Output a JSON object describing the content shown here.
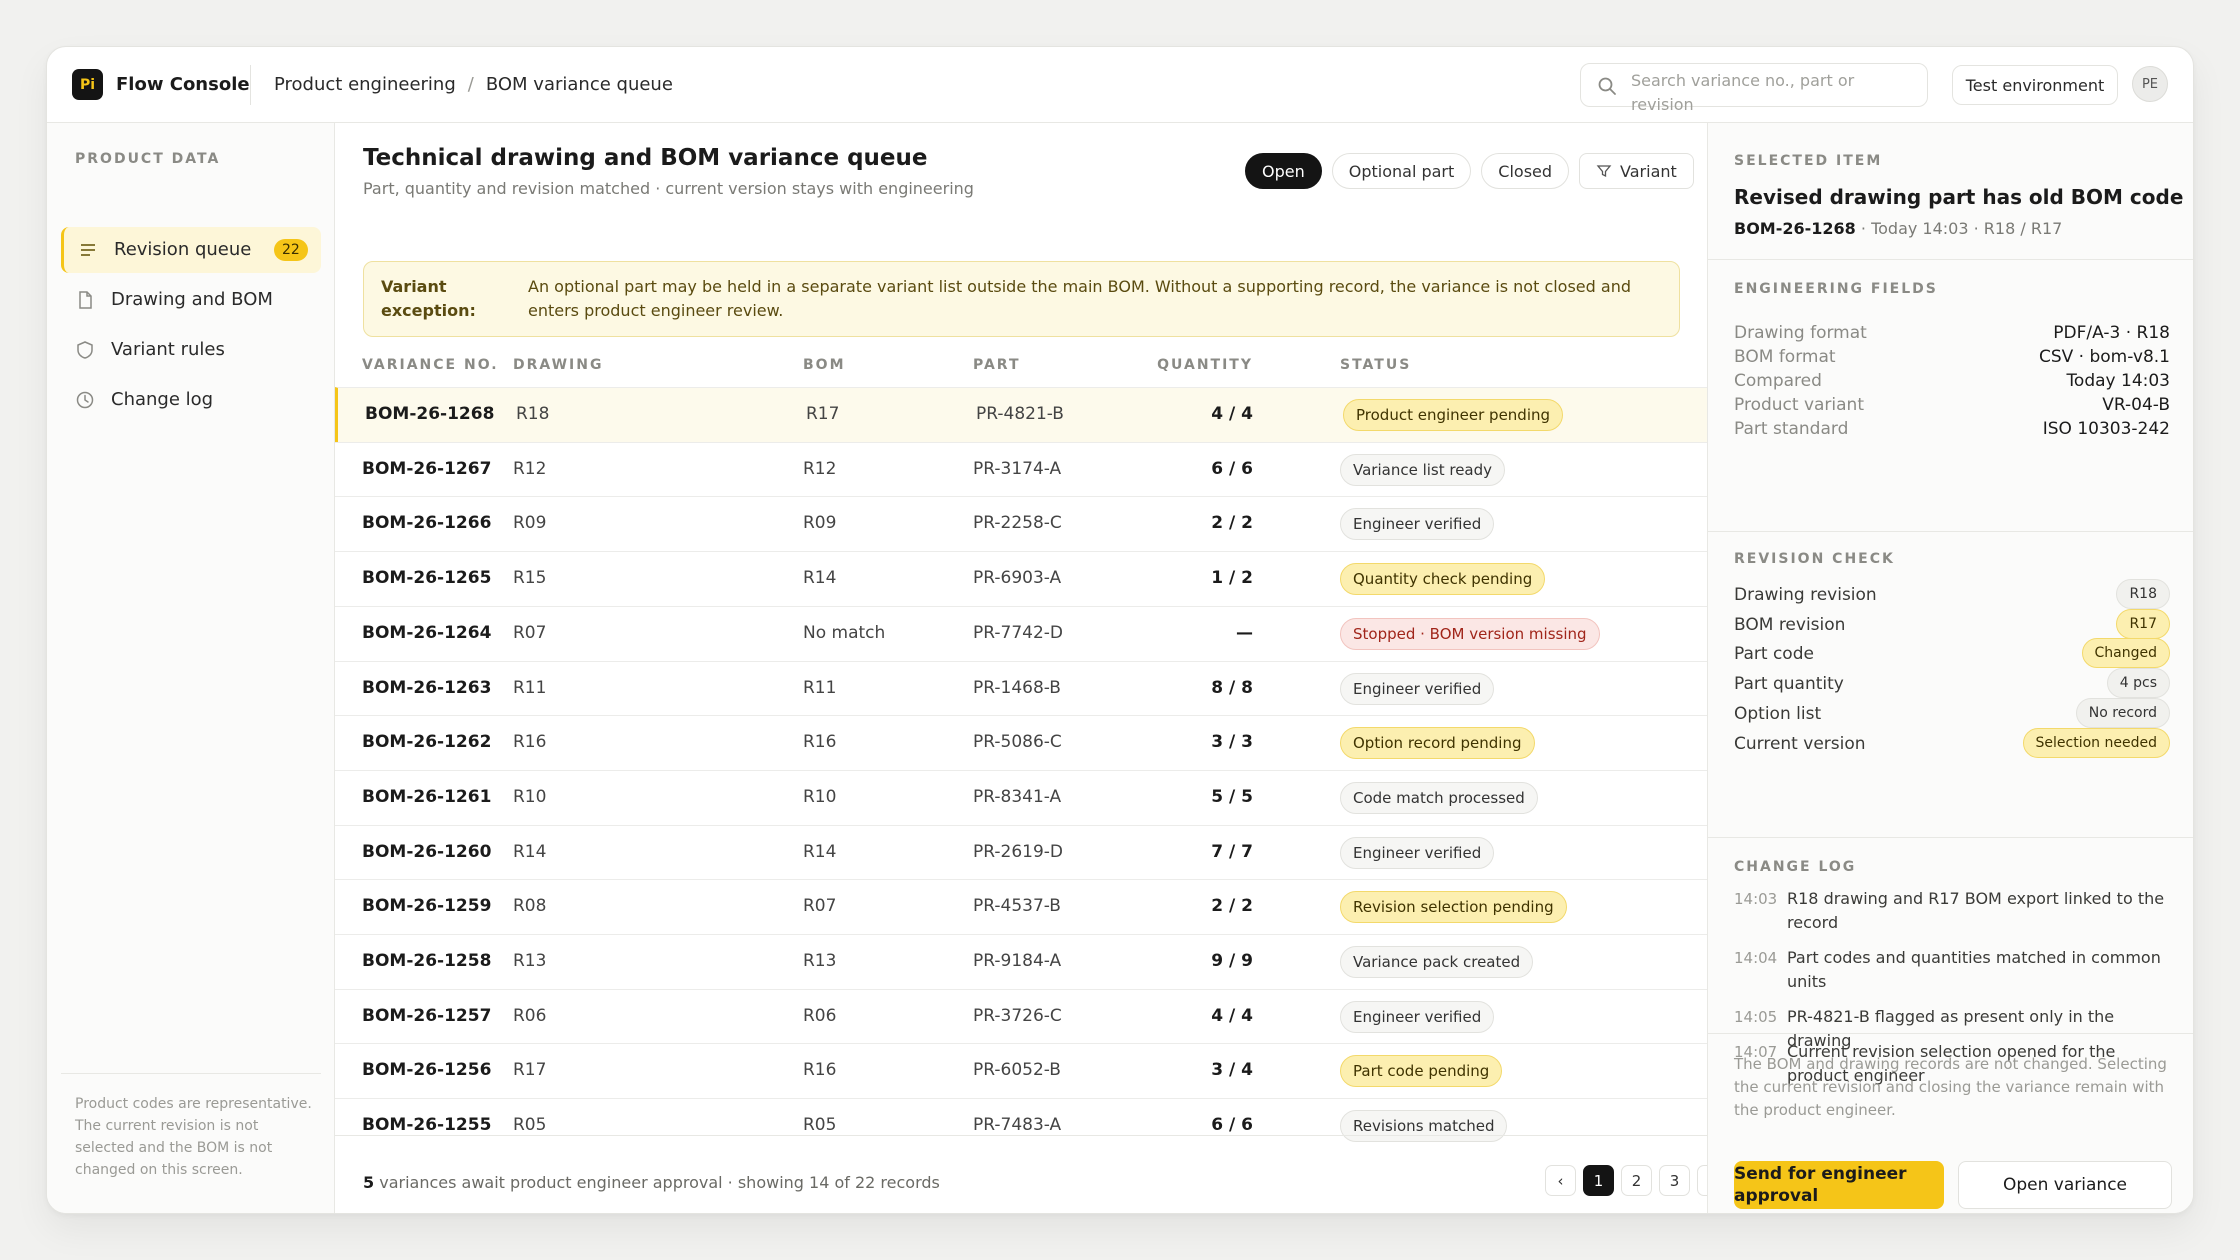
{
  "app": {
    "logo_text": "Pi",
    "name": "Flow Console"
  },
  "breadcrumb": [
    "Product engineering",
    "/",
    "BOM variance queue"
  ],
  "search": {
    "placeholder": "Search variance no., part or revision"
  },
  "env_label": "Test environment",
  "avatar": "PE",
  "sidebar": {
    "section": "PRODUCT DATA",
    "items": [
      {
        "label": "Revision queue",
        "badge": "22",
        "icon": "list-icon"
      },
      {
        "label": "Drawing and BOM",
        "icon": "document-icon"
      },
      {
        "label": "Variant rules",
        "icon": "shield-icon"
      },
      {
        "label": "Change log",
        "icon": "clock-icon"
      }
    ],
    "footer": "Product codes are representative. The current revision is not selected and the BOM is not changed on this screen."
  },
  "main": {
    "title": "Technical drawing and BOM variance queue",
    "subtitle": "Part, quantity and revision matched · current version stays with engineering",
    "filters": [
      "Open",
      "Optional part",
      "Closed",
      "Variant"
    ],
    "notice_label": "Variant exception:",
    "notice_text": "An optional part may be held in a separate variant list outside the main BOM. Without a supporting record, the variance is not closed and enters product engineer review.",
    "columns": [
      "VARIANCE NO.",
      "DRAWING",
      "BOM",
      "PART",
      "QUANTITY",
      "STATUS"
    ],
    "rows": [
      {
        "id": "BOM-26-1268",
        "drawing": "R18",
        "bom": "R17",
        "part": "PR-4821-B",
        "qty": "4 / 4",
        "status": "Product engineer pending",
        "tone": "yellow"
      },
      {
        "id": "BOM-26-1267",
        "drawing": "R12",
        "bom": "R12",
        "part": "PR-3174-A",
        "qty": "6 / 6",
        "status": "Variance list ready",
        "tone": "gray"
      },
      {
        "id": "BOM-26-1266",
        "drawing": "R09",
        "bom": "R09",
        "part": "PR-2258-C",
        "qty": "2 / 2",
        "status": "Engineer verified",
        "tone": "gray"
      },
      {
        "id": "BOM-26-1265",
        "drawing": "R15",
        "bom": "R14",
        "part": "PR-6903-A",
        "qty": "1 / 2",
        "status": "Quantity check pending",
        "tone": "yellow"
      },
      {
        "id": "BOM-26-1264",
        "drawing": "R07",
        "bom": "No match",
        "part": "PR-7742-D",
        "qty": "—",
        "status": "Stopped · BOM version missing",
        "tone": "red"
      },
      {
        "id": "BOM-26-1263",
        "drawing": "R11",
        "bom": "R11",
        "part": "PR-1468-B",
        "qty": "8 / 8",
        "status": "Engineer verified",
        "tone": "gray"
      },
      {
        "id": "BOM-26-1262",
        "drawing": "R16",
        "bom": "R16",
        "part": "PR-5086-C",
        "qty": "3 / 3",
        "status": "Option record pending",
        "tone": "yellow"
      },
      {
        "id": "BOM-26-1261",
        "drawing": "R10",
        "bom": "R10",
        "part": "PR-8341-A",
        "qty": "5 / 5",
        "status": "Code match processed",
        "tone": "gray"
      },
      {
        "id": "BOM-26-1260",
        "drawing": "R14",
        "bom": "R14",
        "part": "PR-2619-D",
        "qty": "7 / 7",
        "status": "Engineer verified",
        "tone": "gray"
      },
      {
        "id": "BOM-26-1259",
        "drawing": "R08",
        "bom": "R07",
        "part": "PR-4537-B",
        "qty": "2 / 2",
        "status": "Revision selection pending",
        "tone": "yellow"
      },
      {
        "id": "BOM-26-1258",
        "drawing": "R13",
        "bom": "R13",
        "part": "PR-9184-A",
        "qty": "9 / 9",
        "status": "Variance pack created",
        "tone": "gray"
      },
      {
        "id": "BOM-26-1257",
        "drawing": "R06",
        "bom": "R06",
        "part": "PR-3726-C",
        "qty": "4 / 4",
        "status": "Engineer verified",
        "tone": "gray"
      },
      {
        "id": "BOM-26-1256",
        "drawing": "R17",
        "bom": "R16",
        "part": "PR-6052-B",
        "qty": "3 / 4",
        "status": "Part code pending",
        "tone": "yellow"
      },
      {
        "id": "BOM-26-1255",
        "drawing": "R05",
        "bom": "R05",
        "part": "PR-7483-A",
        "qty": "6 / 6",
        "status": "Revisions matched",
        "tone": "gray"
      }
    ],
    "footer_count": "5",
    "footer_text": " variances await product engineer approval · showing 14 of 22 records",
    "pager": [
      "‹",
      "1",
      "2",
      "3",
      "›"
    ]
  },
  "panel": {
    "selected_section": "SELECTED ITEM",
    "title": "Revised drawing part has old BOM code",
    "meta_id": "BOM-26-1268",
    "meta_rest": "Today 14:03 · R18 / R17",
    "fields_section": "ENGINEERING FIELDS",
    "fields": [
      {
        "k": "Drawing format",
        "v": "PDF/A-3 · R18"
      },
      {
        "k": "BOM format",
        "v": "CSV · bom-v8.1"
      },
      {
        "k": "Compared",
        "v": "Today 14:03"
      },
      {
        "k": "Product variant",
        "v": "VR-04-B"
      },
      {
        "k": "Part standard",
        "v": "ISO 10303-242"
      }
    ],
    "check_section": "REVISION CHECK",
    "checks": [
      {
        "k": "Drawing revision",
        "v": "R18",
        "tone": "gray"
      },
      {
        "k": "BOM revision",
        "v": "R17",
        "tone": "yellow"
      },
      {
        "k": "Part code",
        "v": "Changed",
        "tone": "yellow"
      },
      {
        "k": "Part quantity",
        "v": "4 pcs",
        "tone": "gray"
      },
      {
        "k": "Option list",
        "v": "No record",
        "tone": "gray"
      },
      {
        "k": "Current version",
        "v": "Selection needed",
        "tone": "yellow"
      }
    ],
    "log_section": "CHANGE LOG",
    "log": [
      {
        "t": "14:03",
        "m": "R18 drawing and R17 BOM export linked to the record"
      },
      {
        "t": "14:04",
        "m": "Part codes and quantities matched in common units"
      },
      {
        "t": "14:05",
        "m": "PR-4821-B flagged as present only in the drawing"
      },
      {
        "t": "14:07",
        "m": "Current revision selection opened for the product engineer"
      }
    ],
    "note": "The BOM and drawing records are not changed. Selecting the current revision and closing the variance remain with the product engineer.",
    "send_label": "Send for engineer approval",
    "open_label": "Open variance"
  },
  "colors": {
    "accent": "#f5c518",
    "danger": "#a0251a",
    "ink": "#141414"
  }
}
